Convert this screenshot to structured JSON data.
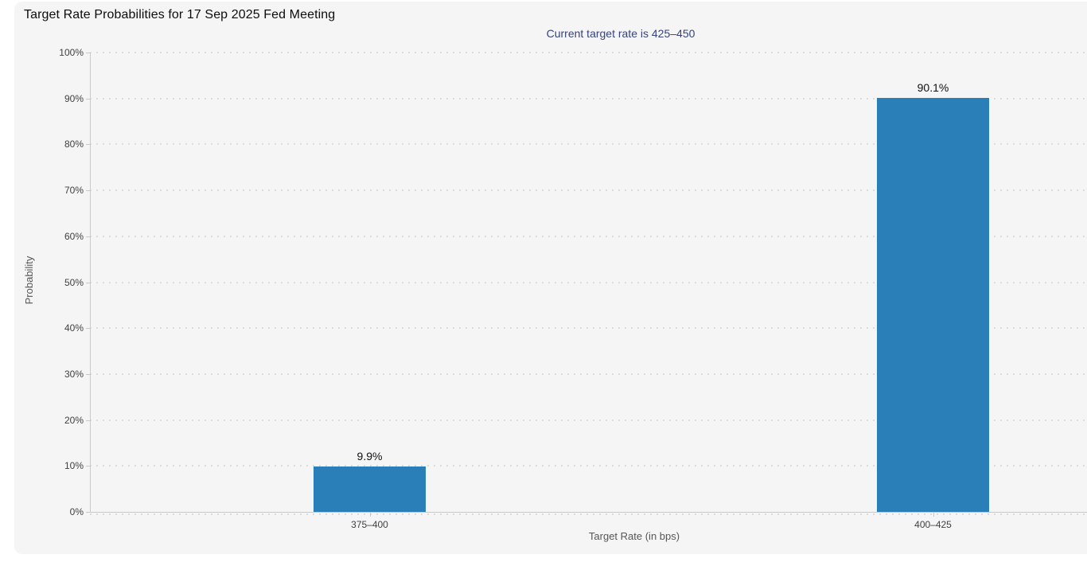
{
  "chart_data": {
    "type": "bar",
    "title": "Target Rate Probabilities for 17 Sep 2025 Fed Meeting",
    "subtitle": "Current target rate is 425–450",
    "categories": [
      "375–400",
      "400–425"
    ],
    "values": [
      9.9,
      90.1
    ],
    "value_labels": [
      "9.9%",
      "90.1%"
    ],
    "xlabel": "Target Rate (in bps)",
    "ylabel": "Probability",
    "ylim": [
      0,
      100
    ],
    "yticks": [
      0,
      10,
      20,
      30,
      40,
      50,
      60,
      70,
      80,
      90,
      100
    ],
    "ytick_labels": [
      "0%",
      "10%",
      "20%",
      "30%",
      "40%",
      "50%",
      "60%",
      "70%",
      "80%",
      "90%",
      "100%"
    ],
    "grid": "horizontal-dotted",
    "legend": "none",
    "bar_color": "#2a7fb8",
    "panel_background": "#f5f5f6",
    "subtitle_color": "#36437c"
  }
}
